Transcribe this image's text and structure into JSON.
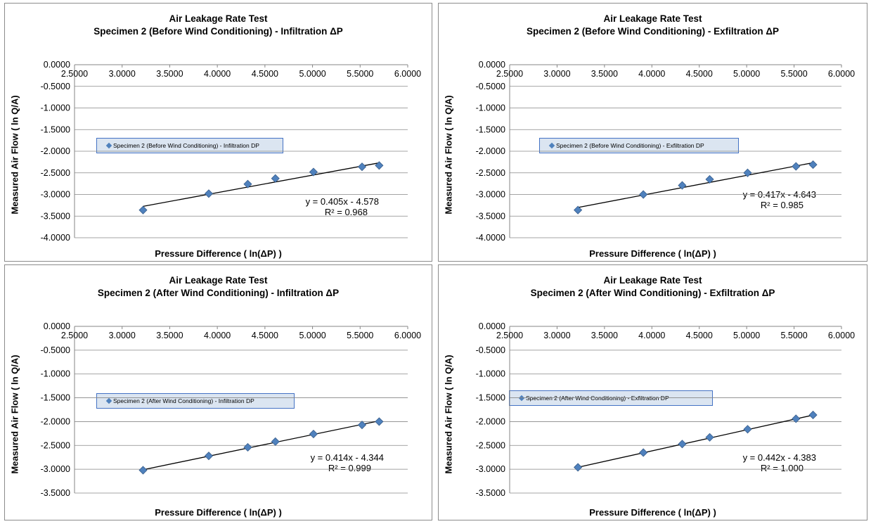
{
  "chart_data": [
    {
      "type": "scatter",
      "title": "Air Leakage Rate Test",
      "subtitle": "Specimen 2 (Before Wind Conditioning) - Infiltration ΔP",
      "xlabel": "Pressure Difference ( ln(ΔP) )",
      "ylabel": "Measured Air Flow ( ln Q/A)",
      "xlim": [
        2.5,
        6.0
      ],
      "ylim": [
        -4.0,
        0.0
      ],
      "x_ticks": [
        "2.5000",
        "3.0000",
        "3.5000",
        "4.0000",
        "4.5000",
        "5.0000",
        "5.5000",
        "6.0000"
      ],
      "y_ticks": [
        "0.0000",
        "-0.5000",
        "-1.0000",
        "-1.5000",
        "-2.0000",
        "-2.5000",
        "-3.0000",
        "-3.5000",
        "-4.0000"
      ],
      "grid": true,
      "legend": "Specimen 2 (Before Wind Conditioning) - Infiltration DP",
      "legend_position": "left",
      "series": [
        {
          "name": "Specimen 2 (Before Wind Conditioning) - Infiltration DP",
          "x": [
            3.22,
            3.91,
            4.32,
            4.61,
            5.01,
            5.52,
            5.7
          ],
          "y": [
            -3.36,
            -2.98,
            -2.76,
            -2.63,
            -2.48,
            -2.36,
            -2.33
          ]
        }
      ],
      "trendline": {
        "slope": 0.405,
        "intercept": -4.578,
        "x": [
          3.22,
          5.7
        ]
      },
      "equation": "y = 0.405x - 4.578",
      "r2": "R² = 0.968"
    },
    {
      "type": "scatter",
      "title": "Air Leakage Rate Test",
      "subtitle": "Specimen 2 (Before Wind Conditioning) - Exfiltration ΔP",
      "xlabel": "Pressure Difference ( ln(ΔP) )",
      "ylabel": "Measured Air Flow ( ln Q/A)",
      "xlim": [
        2.5,
        6.0
      ],
      "ylim": [
        -4.0,
        0.0
      ],
      "x_ticks": [
        "2.5000",
        "3.0000",
        "3.5000",
        "4.0000",
        "4.5000",
        "5.0000",
        "5.5000",
        "6.0000"
      ],
      "y_ticks": [
        "0.0000",
        "-0.5000",
        "-1.0000",
        "-1.5000",
        "-2.0000",
        "-2.5000",
        "-3.0000",
        "-3.5000",
        "-4.0000"
      ],
      "grid": true,
      "legend": "Specimen 2 (Before Wind Conditioning) - Exfiltration DP",
      "legend_position": "left",
      "series": [
        {
          "name": "Specimen 2 (Before Wind Conditioning) - Exfiltration DP",
          "x": [
            3.22,
            3.91,
            4.32,
            4.61,
            5.01,
            5.52,
            5.7
          ],
          "y": [
            -3.36,
            -3.0,
            -2.79,
            -2.65,
            -2.5,
            -2.35,
            -2.31
          ]
        }
      ],
      "trendline": {
        "slope": 0.417,
        "intercept": -4.643,
        "x": [
          3.22,
          5.7
        ]
      },
      "equation": "y = 0.417x - 4.643",
      "r2": "R² = 0.985"
    },
    {
      "type": "scatter",
      "title": "Air Leakage Rate Test",
      "subtitle": "Specimen 2 (After Wind Conditioning) - Infiltration ΔP",
      "xlabel": "Pressure Difference ( ln(ΔP) )",
      "ylabel": "Measured Air Flow ( ln Q/A)",
      "xlim": [
        2.5,
        6.0
      ],
      "ylim": [
        -3.5,
        0.0
      ],
      "x_ticks": [
        "2.5000",
        "3.0000",
        "3.5000",
        "4.0000",
        "4.5000",
        "5.0000",
        "5.5000",
        "6.0000"
      ],
      "y_ticks": [
        "0.0000",
        "-0.5000",
        "-1.0000",
        "-1.5000",
        "-2.0000",
        "-2.5000",
        "-3.0000",
        "-3.5000"
      ],
      "grid": true,
      "legend": "Specimen 2 (After Wind Conditioning) - Infiltration DP",
      "legend_position": "left",
      "series": [
        {
          "name": "Specimen 2 (After Wind Conditioning) - Infiltration DP",
          "x": [
            3.22,
            3.91,
            4.32,
            4.61,
            5.01,
            5.52,
            5.7
          ],
          "y": [
            -3.02,
            -2.72,
            -2.54,
            -2.42,
            -2.26,
            -2.07,
            -2.0
          ]
        }
      ],
      "trendline": {
        "slope": 0.414,
        "intercept": -4.344,
        "x": [
          3.22,
          5.7
        ]
      },
      "equation": "y = 0.414x - 4.344",
      "r2": "R² = 0.999"
    },
    {
      "type": "scatter",
      "title": "Air Leakage Rate Test",
      "subtitle": "Specimen 2 (After Wind Conditioning) - Exfiltration ΔP",
      "xlabel": "Pressure Difference ( ln(ΔP) )",
      "ylabel": "Measured Air Flow ( ln Q/A)",
      "xlim": [
        2.5,
        6.0
      ],
      "ylim": [
        -3.5,
        0.0
      ],
      "x_ticks": [
        "2.5000",
        "3.0000",
        "3.5000",
        "4.0000",
        "4.5000",
        "5.0000",
        "5.5000",
        "6.0000"
      ],
      "y_ticks": [
        "0.0000",
        "-0.5000",
        "-1.0000",
        "-1.5000",
        "-2.0000",
        "-2.5000",
        "-3.0000",
        "-3.5000"
      ],
      "grid": true,
      "legend": "Specimen 2 (After Wind Conditioning) - Exfiltration DP",
      "legend_position": "left",
      "series": [
        {
          "name": "Specimen 2 (After Wind Conditioning) - Exfiltration DP",
          "x": [
            3.22,
            3.91,
            4.32,
            4.61,
            5.01,
            5.52,
            5.7
          ],
          "y": [
            -2.96,
            -2.65,
            -2.47,
            -2.33,
            -2.16,
            -1.94,
            -1.86
          ]
        }
      ],
      "trendline": {
        "slope": 0.442,
        "intercept": -4.383,
        "x": [
          3.22,
          5.7
        ]
      },
      "equation": "y = 0.442x - 4.383",
      "r2": "R² = 1.000"
    }
  ],
  "colors": {
    "marker": "#4f81bd",
    "marker_edge": "#385d8a",
    "gridline": "#868686",
    "trendline": "#000000",
    "legend_fill": "#dbe5f1",
    "legend_border": "#4472c4",
    "panel_border": "#8c8c8c"
  }
}
